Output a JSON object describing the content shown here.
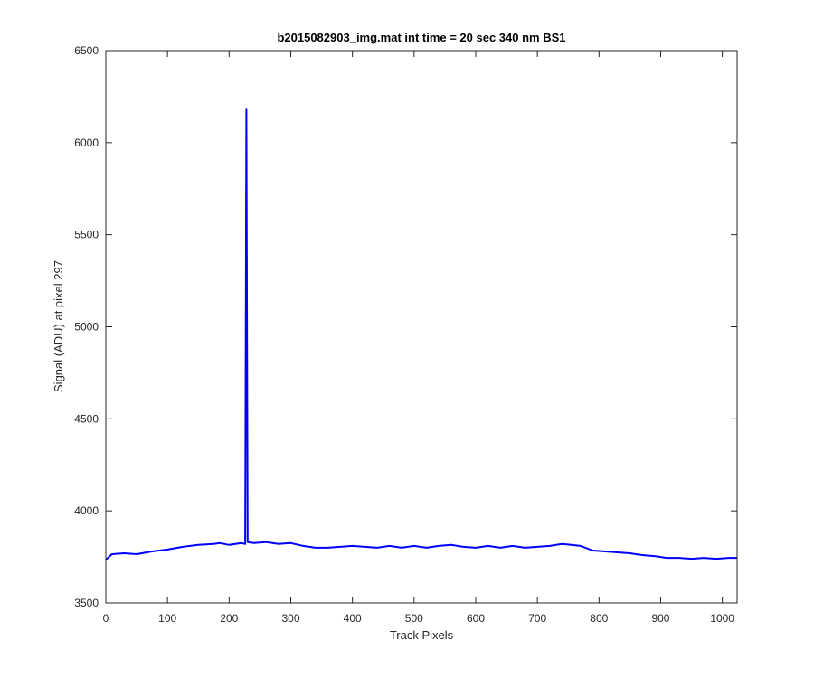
{
  "chart_data": {
    "type": "line",
    "title": "b2015082903_img.mat int time = 20 sec  340 nm BS1",
    "xlabel": "Track Pixels",
    "ylabel": "Signal (ADU) at pixel 297",
    "xlim": [
      0,
      1024
    ],
    "ylim": [
      3500,
      6500
    ],
    "xticks": [
      0,
      100,
      200,
      300,
      400,
      500,
      600,
      700,
      800,
      900,
      1000
    ],
    "yticks": [
      3500,
      4000,
      4500,
      5000,
      5500,
      6000,
      6500
    ],
    "xtick_labels": [
      "0",
      "100",
      "200",
      "300",
      "400",
      "500",
      "600",
      "700",
      "800",
      "900",
      "1000"
    ],
    "ytick_labels": [
      "3500",
      "4000",
      "4500",
      "5000",
      "5500",
      "6000",
      "6500"
    ],
    "grid": false,
    "series": [
      {
        "color": "#0000ff",
        "x": [
          0,
          10,
          30,
          50,
          75,
          100,
          125,
          150,
          175,
          185,
          200,
          220,
          226,
          228,
          230,
          240,
          260,
          280,
          300,
          320,
          340,
          360,
          380,
          400,
          420,
          440,
          460,
          480,
          500,
          520,
          540,
          560,
          580,
          600,
          620,
          640,
          660,
          680,
          700,
          720,
          740,
          755,
          770,
          790,
          810,
          830,
          850,
          870,
          890,
          910,
          930,
          950,
          970,
          990,
          1010,
          1024
        ],
        "y": [
          3735,
          3765,
          3770,
          3765,
          3780,
          3790,
          3805,
          3815,
          3820,
          3825,
          3815,
          3825,
          3820,
          6180,
          3830,
          3825,
          3830,
          3820,
          3825,
          3810,
          3800,
          3800,
          3805,
          3810,
          3805,
          3800,
          3810,
          3800,
          3810,
          3800,
          3810,
          3815,
          3805,
          3800,
          3810,
          3800,
          3810,
          3800,
          3805,
          3810,
          3820,
          3815,
          3810,
          3785,
          3780,
          3775,
          3770,
          3760,
          3755,
          3745,
          3745,
          3740,
          3745,
          3740,
          3745,
          3745
        ]
      }
    ]
  }
}
